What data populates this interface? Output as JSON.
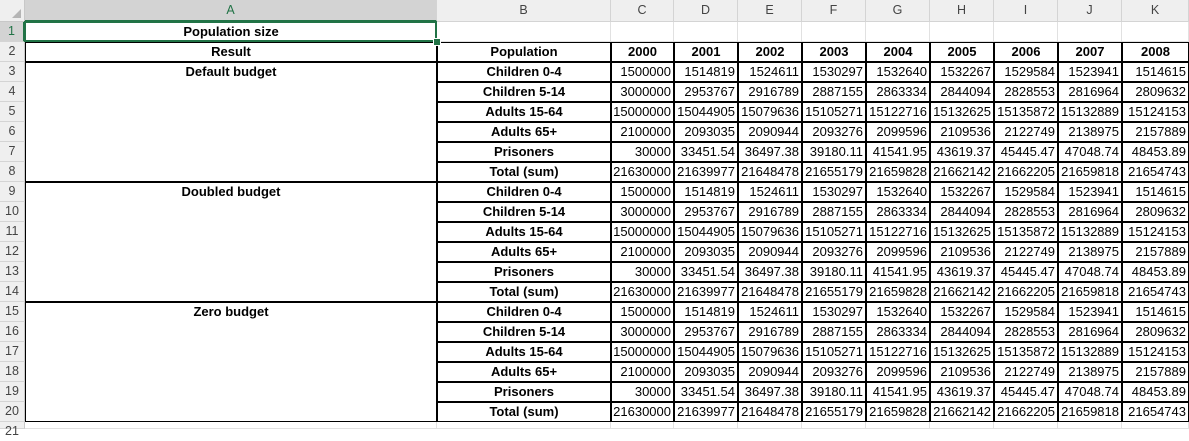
{
  "columns": [
    "A",
    "B",
    "C",
    "D",
    "E",
    "F",
    "G",
    "H",
    "I",
    "J",
    "K"
  ],
  "rows": [
    1,
    2,
    3,
    4,
    5,
    6,
    7,
    8,
    9,
    10,
    11,
    12,
    13,
    14,
    15,
    16,
    17,
    18,
    19,
    20,
    21
  ],
  "selected_cell": "A1",
  "title": "Population size",
  "headers": {
    "result": "Result",
    "population": "Population",
    "years": [
      "2000",
      "2001",
      "2002",
      "2003",
      "2004",
      "2005",
      "2006",
      "2007",
      "2008"
    ]
  },
  "blocks": [
    {
      "result": "Default budget",
      "rows": [
        {
          "population": "Children 0-4",
          "values": [
            "1500000",
            "1514819",
            "1524611",
            "1530297",
            "1532640",
            "1532267",
            "1529584",
            "1523941",
            "1514615"
          ]
        },
        {
          "population": "Children 5-14",
          "values": [
            "3000000",
            "2953767",
            "2916789",
            "2887155",
            "2863334",
            "2844094",
            "2828553",
            "2816964",
            "2809632"
          ]
        },
        {
          "population": "Adults 15-64",
          "values": [
            "15000000",
            "15044905",
            "15079636",
            "15105271",
            "15122716",
            "15132625",
            "15135872",
            "15132889",
            "15124153"
          ]
        },
        {
          "population": "Adults 65+",
          "values": [
            "2100000",
            "2093035",
            "2090944",
            "2093276",
            "2099596",
            "2109536",
            "2122749",
            "2138975",
            "2157889"
          ]
        },
        {
          "population": "Prisoners",
          "values": [
            "30000",
            "33451.54",
            "36497.38",
            "39180.11",
            "41541.95",
            "43619.37",
            "45445.47",
            "47048.74",
            "48453.89"
          ]
        },
        {
          "population": "Total (sum)",
          "values": [
            "21630000",
            "21639977",
            "21648478",
            "21655179",
            "21659828",
            "21662142",
            "21662205",
            "21659818",
            "21654743"
          ]
        }
      ]
    },
    {
      "result": "Doubled budget",
      "rows": [
        {
          "population": "Children 0-4",
          "values": [
            "1500000",
            "1514819",
            "1524611",
            "1530297",
            "1532640",
            "1532267",
            "1529584",
            "1523941",
            "1514615"
          ]
        },
        {
          "population": "Children 5-14",
          "values": [
            "3000000",
            "2953767",
            "2916789",
            "2887155",
            "2863334",
            "2844094",
            "2828553",
            "2816964",
            "2809632"
          ]
        },
        {
          "population": "Adults 15-64",
          "values": [
            "15000000",
            "15044905",
            "15079636",
            "15105271",
            "15122716",
            "15132625",
            "15135872",
            "15132889",
            "15124153"
          ]
        },
        {
          "population": "Adults 65+",
          "values": [
            "2100000",
            "2093035",
            "2090944",
            "2093276",
            "2099596",
            "2109536",
            "2122749",
            "2138975",
            "2157889"
          ]
        },
        {
          "population": "Prisoners",
          "values": [
            "30000",
            "33451.54",
            "36497.38",
            "39180.11",
            "41541.95",
            "43619.37",
            "45445.47",
            "47048.74",
            "48453.89"
          ]
        },
        {
          "population": "Total (sum)",
          "values": [
            "21630000",
            "21639977",
            "21648478",
            "21655179",
            "21659828",
            "21662142",
            "21662205",
            "21659818",
            "21654743"
          ]
        }
      ]
    },
    {
      "result": "Zero budget",
      "rows": [
        {
          "population": "Children 0-4",
          "values": [
            "1500000",
            "1514819",
            "1524611",
            "1530297",
            "1532640",
            "1532267",
            "1529584",
            "1523941",
            "1514615"
          ]
        },
        {
          "population": "Children 5-14",
          "values": [
            "3000000",
            "2953767",
            "2916789",
            "2887155",
            "2863334",
            "2844094",
            "2828553",
            "2816964",
            "2809632"
          ]
        },
        {
          "population": "Adults 15-64",
          "values": [
            "15000000",
            "15044905",
            "15079636",
            "15105271",
            "15122716",
            "15132625",
            "15135872",
            "15132889",
            "15124153"
          ]
        },
        {
          "population": "Adults 65+",
          "values": [
            "2100000",
            "2093035",
            "2090944",
            "2093276",
            "2099596",
            "2109536",
            "2122749",
            "2138975",
            "2157889"
          ]
        },
        {
          "population": "Prisoners",
          "values": [
            "30000",
            "33451.54",
            "36497.38",
            "39180.11",
            "41541.95",
            "43619.37",
            "45445.47",
            "47048.74",
            "48453.89"
          ]
        },
        {
          "population": "Total (sum)",
          "values": [
            "21630000",
            "21639977",
            "21648478",
            "21655179",
            "21659828",
            "21662142",
            "21662205",
            "21659818",
            "21654743"
          ]
        }
      ]
    }
  ],
  "colors": {
    "accent": "#217346",
    "header_bg": "#efefef",
    "gridline": "#e1e1e1"
  }
}
